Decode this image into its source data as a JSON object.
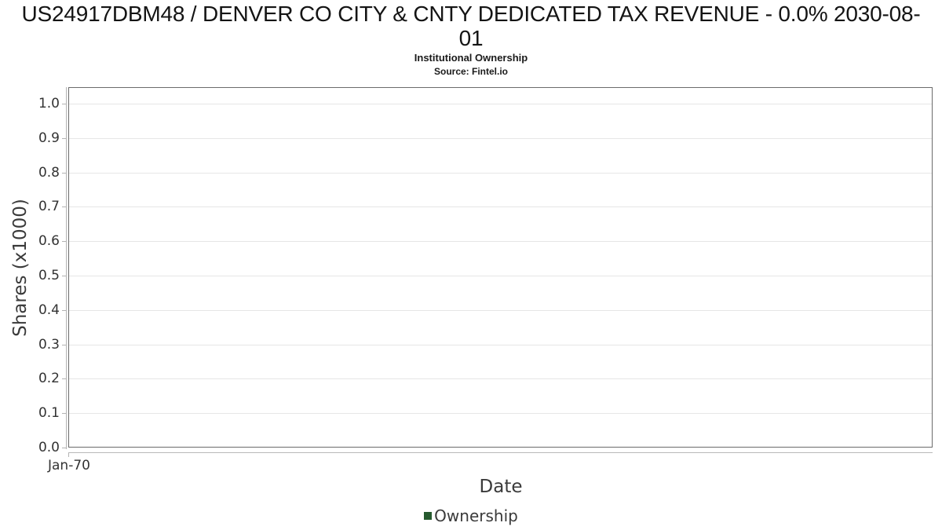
{
  "chart_data": {
    "type": "line",
    "title": "US24917DBM48 / DENVER CO CITY & CNTY DEDICATED TAX REVENUE - 0.0% 2030-08-01",
    "subtitle": "Institutional Ownership",
    "source": "Source: Fintel.io",
    "xlabel": "Date",
    "ylabel": "Shares (x1000)",
    "ylim": [
      0.0,
      1.0
    ],
    "ytick_step": 0.1,
    "yticks": [
      "0.0",
      "0.1",
      "0.2",
      "0.3",
      "0.4",
      "0.5",
      "0.6",
      "0.7",
      "0.8",
      "0.9",
      "1.0"
    ],
    "xticks": [
      "Jan-70"
    ],
    "grid": true,
    "legend_position": "bottom",
    "series": [
      {
        "name": "Ownership",
        "color": "#265a2e",
        "x": [],
        "values": []
      }
    ]
  },
  "colors": {
    "legend_marker": "#265a2e",
    "plot_frame": "#6b6b6b",
    "axis_line": "#b3b3b3",
    "gridline": "#e6e6e6",
    "title_text": "#141414",
    "tick_label_text": "#333333",
    "axis_title_text": "#3a3a3a",
    "background": "#ffffff"
  }
}
